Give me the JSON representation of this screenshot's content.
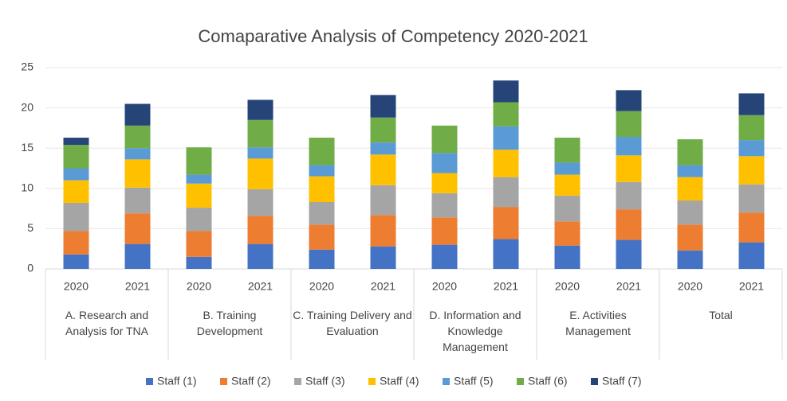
{
  "chart_data": {
    "type": "stacked_bar",
    "title": "Comaparative Analysis of Competency 2020-2021",
    "groups": [
      "A. Research and Analysis for TNA",
      "B. Training Development",
      "C. Training Delivery and Evaluation",
      "D. Information and Knowledge Management",
      "E. Activities Management",
      "Total"
    ],
    "categories": [
      "2020",
      "2021",
      "2020",
      "2021",
      "2020",
      "2021",
      "2020",
      "2021",
      "2020",
      "2021",
      "2020",
      "2021"
    ],
    "series": [
      {
        "name": "Staff (1)",
        "color": "#4472c4",
        "values": [
          1.8,
          3.1,
          1.5,
          3.1,
          2.4,
          2.8,
          3.0,
          3.7,
          2.9,
          3.6,
          2.3,
          3.3
        ]
      },
      {
        "name": "Staff (2)",
        "color": "#ed7d31",
        "values": [
          2.9,
          3.8,
          3.2,
          3.5,
          3.1,
          3.9,
          3.4,
          4.0,
          3.0,
          3.8,
          3.2,
          3.7
        ]
      },
      {
        "name": "Staff (3)",
        "color": "#a5a5a5",
        "values": [
          3.5,
          3.2,
          2.9,
          3.3,
          2.8,
          3.7,
          3.0,
          3.7,
          3.2,
          3.4,
          3.0,
          3.5
        ]
      },
      {
        "name": "Staff (4)",
        "color": "#ffc000",
        "values": [
          2.8,
          3.5,
          3.0,
          3.8,
          3.2,
          3.8,
          2.5,
          3.4,
          2.6,
          3.3,
          2.9,
          3.5
        ]
      },
      {
        "name": "Staff (5)",
        "color": "#5b9bd5",
        "values": [
          1.5,
          1.4,
          1.1,
          1.4,
          1.4,
          1.5,
          2.5,
          2.9,
          1.5,
          2.3,
          1.5,
          2.0
        ]
      },
      {
        "name": "Staff (6)",
        "color": "#70ad47",
        "values": [
          2.9,
          2.8,
          3.4,
          3.4,
          3.4,
          3.1,
          3.4,
          3.0,
          3.1,
          3.2,
          3.2,
          3.1
        ]
      },
      {
        "name": "Staff (7)",
        "color": "#264478",
        "values": [
          0.9,
          2.7,
          0,
          2.5,
          0,
          2.8,
          0,
          2.7,
          0,
          2.6,
          0,
          2.7
        ]
      }
    ],
    "ylim": [
      0,
      25
    ],
    "yticks": [
      0,
      5,
      10,
      15,
      20,
      25
    ],
    "grid": true,
    "legend": "bottom"
  }
}
